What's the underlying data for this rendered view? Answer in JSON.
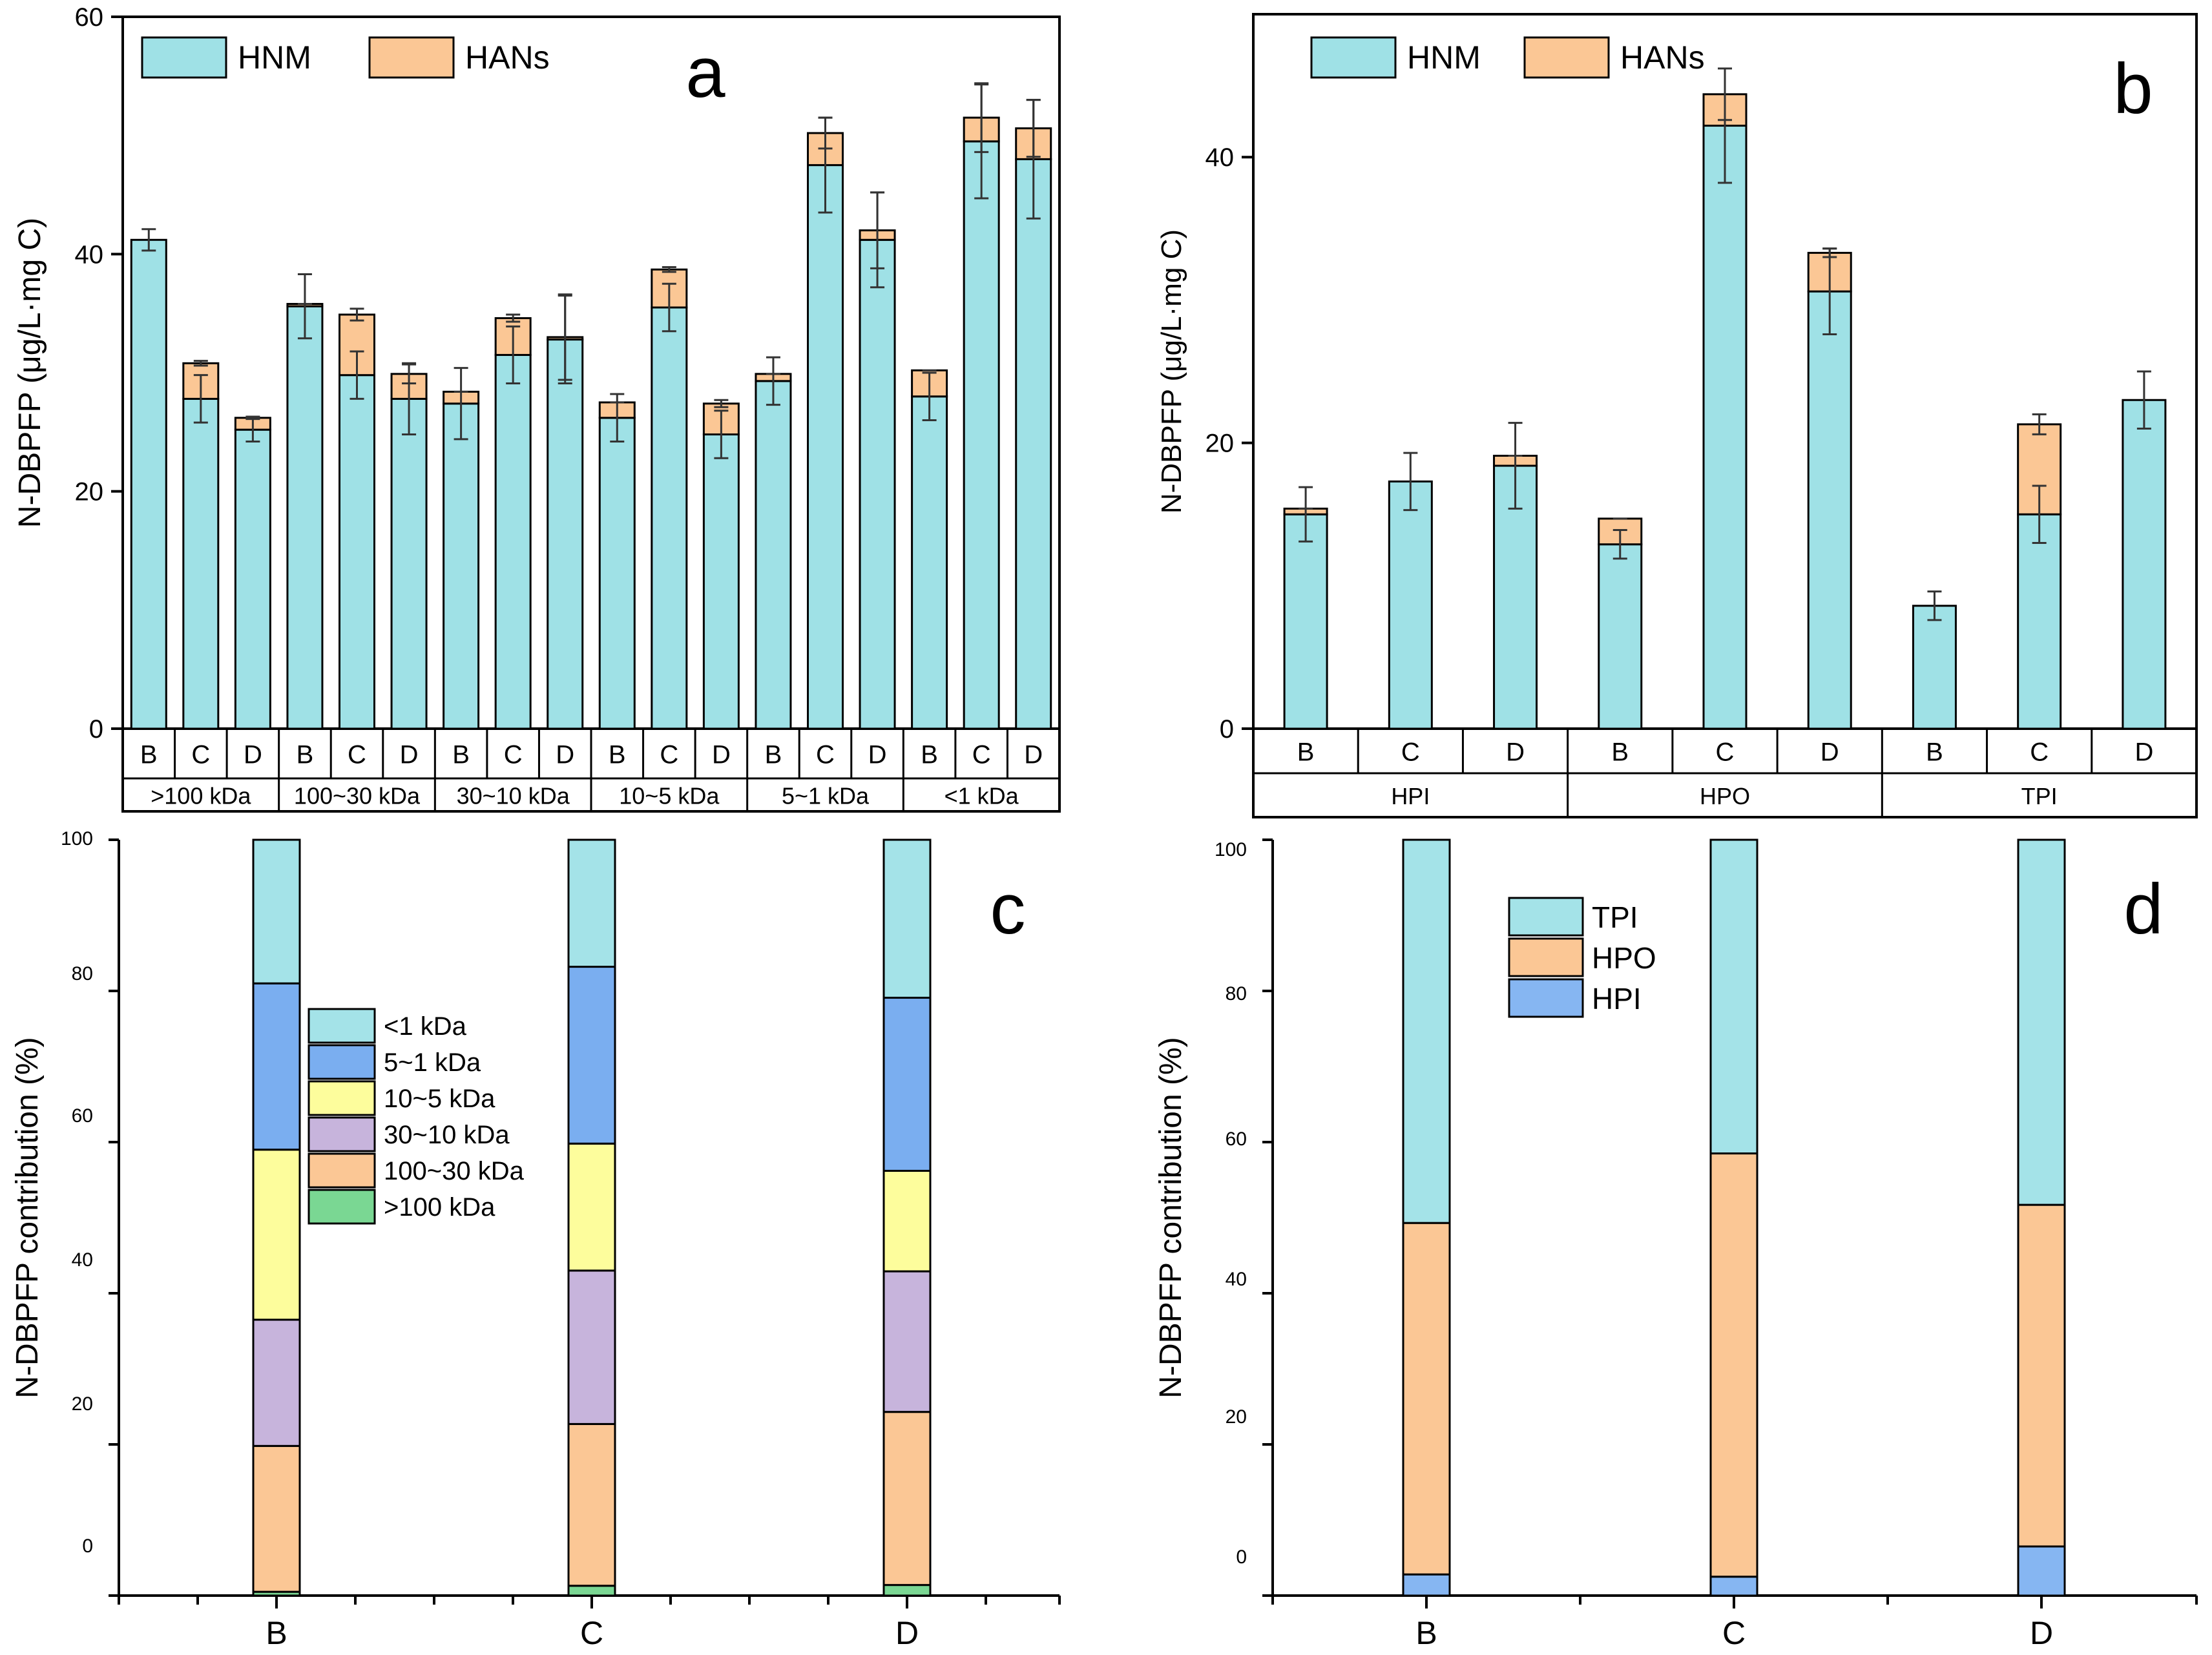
{
  "colors": {
    "HNM": "#9fe1e6",
    "HANs": "#fbc795",
    "lt1": "#a4e3e8",
    "k5_1": "#7aaef0",
    "k10_5": "#fdfd9c",
    "k30_10": "#c7b4dc",
    "k100_30": "#fbc795",
    "gt100": "#7ad793",
    "TPI": "#a4e3e8",
    "HPO": "#fbc795",
    "HPI": "#86b6f2",
    "axis": "#000000",
    "errorbar": "#333333"
  },
  "chart_data": [
    {
      "id": "a",
      "type": "bar",
      "stacked": true,
      "panel_label": "a",
      "ylabel": "N-DBPFP (μg/L·mg C)",
      "ylim": [
        0,
        60
      ],
      "yticks": [
        0,
        20,
        40,
        60
      ],
      "legend": [
        "HNM",
        "HANs"
      ],
      "legend_position": "top-left",
      "groups": [
        ">100 kDa",
        "100~30 kDa",
        "30~10 kDa",
        "10~5 kDa",
        "5~1 kDa",
        "<1 kDa"
      ],
      "categories": [
        "B",
        "C",
        "D"
      ],
      "series": [
        {
          "name": "HNM",
          "values": [
            [
              41.2,
              27.8,
              25.2
            ],
            [
              35.6,
              29.8,
              27.8
            ],
            [
              27.4,
              31.5,
              32.8
            ],
            [
              26.2,
              35.5,
              24.8
            ],
            [
              29.3,
              47.5,
              41.2
            ],
            [
              28.0,
              49.5,
              48.0
            ]
          ]
        },
        {
          "name": "HANs",
          "values": [
            [
              0.0,
              3.0,
              1.0
            ],
            [
              0.2,
              5.1,
              2.1
            ],
            [
              1.0,
              3.1,
              0.2
            ],
            [
              1.3,
              3.2,
              2.6
            ],
            [
              0.6,
              2.7,
              0.8
            ],
            [
              2.2,
              2.0,
              2.6
            ]
          ]
        }
      ],
      "hnm_error": [
        [
          0.9,
          2.0,
          1.0
        ],
        [
          2.7,
          2.0,
          3.0
        ],
        [
          3.0,
          2.4,
          3.7
        ],
        [
          2.0,
          2.0,
          2.0
        ],
        [
          2.0,
          4.0,
          4.0
        ],
        [
          2.0,
          4.8,
          5.0
        ]
      ],
      "total_error": [
        [
          0.0,
          0.2,
          0.1
        ],
        [
          0.0,
          0.5,
          0.8
        ],
        [
          0.0,
          0.3,
          3.6
        ],
        [
          0.0,
          0.2,
          0.3
        ],
        [
          0.0,
          1.3,
          3.2
        ],
        [
          0.0,
          2.9,
          2.4
        ]
      ]
    },
    {
      "id": "b",
      "type": "bar",
      "stacked": true,
      "panel_label": "b",
      "ylabel": "N-DBPFP (μg/L·mg C)",
      "ylim": [
        0,
        50
      ],
      "yticks": [
        0,
        20,
        40
      ],
      "legend": [
        "HNM",
        "HANs"
      ],
      "legend_position": "top-left",
      "groups": [
        "HPI",
        "HPO",
        "TPI"
      ],
      "categories": [
        "B",
        "C",
        "D"
      ],
      "series": [
        {
          "name": "HNM",
          "values": [
            [
              15.0,
              17.3,
              18.4
            ],
            [
              12.9,
              42.2,
              30.6
            ],
            [
              8.6,
              15.0,
              23.0
            ]
          ]
        },
        {
          "name": "HANs",
          "values": [
            [
              0.4,
              0.0,
              0.7
            ],
            [
              1.8,
              2.2,
              2.7
            ],
            [
              0.0,
              6.3,
              0.0
            ]
          ]
        }
      ],
      "hnm_error": [
        [
          1.9,
          2.0,
          3.0
        ],
        [
          1.0,
          4.0,
          3.0
        ],
        [
          1.0,
          2.0,
          2.0
        ]
      ],
      "total_error": [
        [
          0.0,
          0.0,
          0.0
        ],
        [
          0.0,
          1.8,
          0.3
        ],
        [
          0.0,
          0.7,
          0.0
        ]
      ]
    },
    {
      "id": "c",
      "type": "bar",
      "stacked": true,
      "panel_label": "c",
      "ylabel": "N-DBPFP contribution (%)",
      "ytick_labels": [
        "0",
        "20",
        "40",
        "60",
        "80",
        "100"
      ],
      "legend_position": "upper-left",
      "categories": [
        "B",
        "C",
        "D"
      ],
      "series": [
        {
          "name": ">100 kDa",
          "values": [
            0.5,
            1.3,
            1.4
          ]
        },
        {
          "name": "100~30 kDa",
          "values": [
            19.3,
            21.4,
            22.9
          ]
        },
        {
          "name": "30~10 kDa",
          "values": [
            16.7,
            20.3,
            18.6
          ]
        },
        {
          "name": "10~5 kDa",
          "values": [
            22.5,
            16.8,
            13.3
          ]
        },
        {
          "name": "5~1 kDa",
          "values": [
            22.0,
            23.4,
            22.9
          ]
        },
        {
          "name": "<1 kDa",
          "values": [
            19.0,
            16.8,
            20.9
          ]
        }
      ],
      "legend": [
        "<1 kDa",
        "5~1 kDa",
        "10~5 kDa",
        "30~10 kDa",
        "100~30 kDa",
        ">100 kDa"
      ]
    },
    {
      "id": "d",
      "type": "bar",
      "stacked": true,
      "panel_label": "d",
      "ylabel": "N-DBPFP contribution (%)",
      "ytick_labels": [
        "0",
        "20",
        "40",
        "60",
        "80",
        "100"
      ],
      "legend_position": "upper-left",
      "categories": [
        "B",
        "C",
        "D"
      ],
      "series": [
        {
          "name": "HPI",
          "values": [
            2.8,
            2.5,
            6.5
          ]
        },
        {
          "name": "HPO",
          "values": [
            46.5,
            56.0,
            45.2
          ]
        },
        {
          "name": "TPI",
          "values": [
            50.7,
            41.5,
            48.3
          ]
        }
      ],
      "legend": [
        "TPI",
        "HPO",
        "HPI"
      ]
    }
  ]
}
